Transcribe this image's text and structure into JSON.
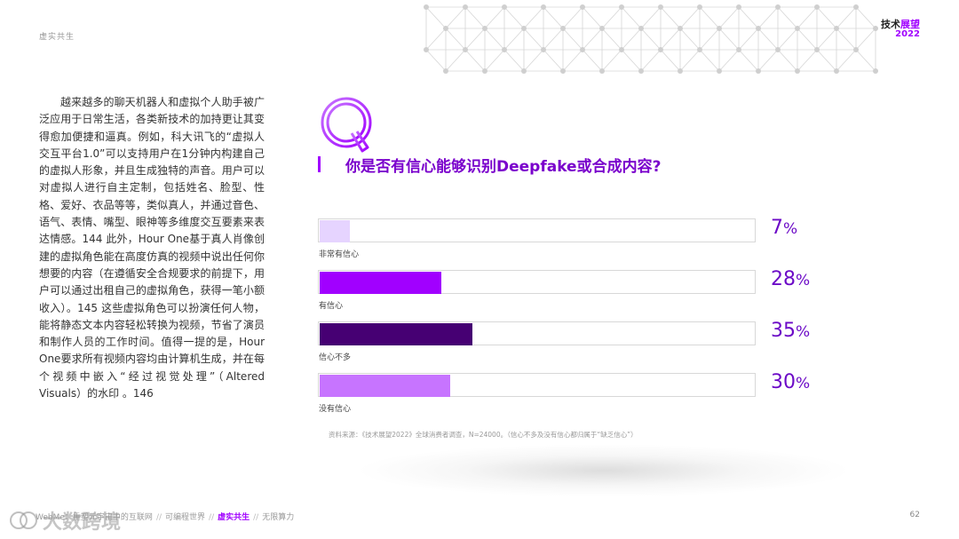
{
  "header": {
    "section_label": "虚实共生",
    "brand_prefix": "技术",
    "brand_accent": "展望",
    "brand_year": "2022"
  },
  "body_text": "越来越多的聊天机器人和虚拟个人助手被广泛应用于日常生活，各类新技术的加持更让其变得愈加便捷和逼真。例如，科大讯飞的“虚拟人交互平台1.0”可以支持用户在1分钟内构建自己的虚拟人形象，并且生成独特的声音。用户可以对虚拟人进行自主定制，包括姓名、脸型、性格、爱好、衣品等等，类似真人，并通过音色、语气、表情、嘴型、眼神等多维度交互要素来表达情感。144 此外，Hour One基于真人肖像创建的虚拟角色能在高度仿真的视频中说出任何你想要的内容（在遵循安全合规要求的前提下，用户可以通过出租自己的虚拟角色，获得一笔小额收入）。145 这些虚拟角色可以扮演任何人物，能将静态文本内容轻松转换为视频，节省了演员和制作人员的工作时间。值得一提的是，Hour One要求所有视频内容均由计算机生成，并在每个视频中嵌入“经过视觉处理”（Altered Visuals）的水印 。146",
  "chart_data": {
    "type": "bar",
    "orientation": "horizontal",
    "title": "你是否有信心能够识别Deepfake或合成内容?",
    "categories": [
      "非常有信心",
      "有信心",
      "信心不多",
      "没有信心"
    ],
    "values": [
      7,
      28,
      35,
      30
    ],
    "value_suffix": "%",
    "colors": [
      "#e6d4ff",
      "#a100ff",
      "#460073",
      "#c774ff"
    ],
    "xlim": [
      0,
      100
    ],
    "grid": false,
    "legend": "none"
  },
  "source_note": "资料来源：《技术展望2022》全球消费者调查，N=24000。（信心不多及没有信心都归属于“缺乏信心”）",
  "footer": {
    "items": [
      "WebMe：重塑元宇宙中的互联网",
      "可编程世界",
      "虚实共生",
      "无限算力"
    ],
    "active_index": 2,
    "page_number": "62"
  },
  "watermark": "大数跨境"
}
